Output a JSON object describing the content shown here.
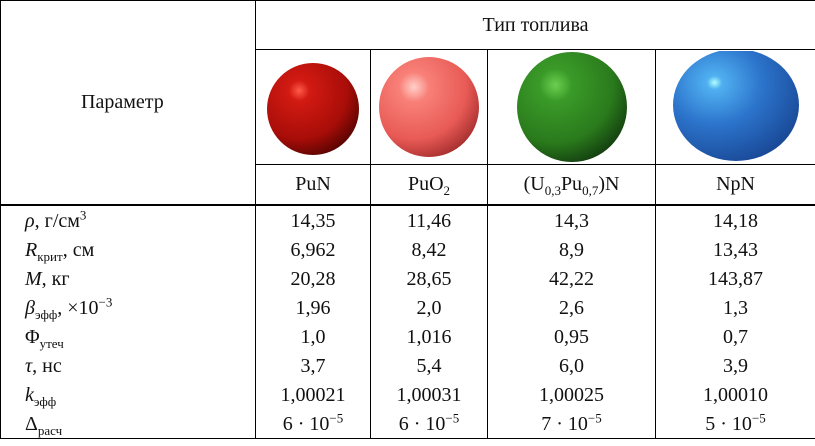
{
  "table": {
    "header": {
      "parameter": "Параметр",
      "fuel_type": "Тип топлива",
      "fuels": [
        [
          {
            "text": "PuN"
          }
        ],
        [
          {
            "text": "PuO"
          },
          {
            "sub": "2"
          }
        ],
        [
          {
            "text": "(U"
          },
          {
            "sub": "0,3"
          },
          {
            "text": "Pu"
          },
          {
            "sub": "0,7"
          },
          {
            "text": ")N"
          }
        ],
        [
          {
            "text": "NpN"
          }
        ]
      ]
    },
    "rows": [
      {
        "label": [
          {
            "math": "ρ"
          },
          {
            "text": ", г/см"
          },
          {
            "sup": "3"
          }
        ],
        "cells": [
          "14,35",
          "11,46",
          "14,3",
          "14,18"
        ]
      },
      {
        "label": [
          {
            "math": "R"
          },
          {
            "sub": "крит"
          },
          {
            "text": ", см"
          }
        ],
        "cells": [
          "6,962",
          "8,42",
          "8,9",
          "13,43"
        ]
      },
      {
        "label": [
          {
            "math": "M"
          },
          {
            "text": ", кг"
          }
        ],
        "cells": [
          "20,28",
          "28,65",
          "42,22",
          "143,87"
        ]
      },
      {
        "label": [
          {
            "math": "β"
          },
          {
            "sub": "эфф"
          },
          {
            "text": ", ×10"
          },
          {
            "sup": "−3"
          }
        ],
        "cells": [
          "1,96",
          "2,0",
          "2,6",
          "1,3"
        ]
      },
      {
        "label": [
          {
            "text": "Φ"
          },
          {
            "sub": "утеч"
          }
        ],
        "cells": [
          "1,0",
          "1,016",
          "0,95",
          "0,7"
        ]
      },
      {
        "label": [
          {
            "math": "τ"
          },
          {
            "text": ", нс"
          }
        ],
        "cells": [
          "3,7",
          "5,4",
          "6,0",
          "3,9"
        ]
      },
      {
        "label": [
          {
            "math": "k"
          },
          {
            "sub": "эфф"
          }
        ],
        "cells": [
          "1,00021",
          "1,00031",
          "1,00025",
          "1,00010"
        ]
      },
      {
        "label": [
          {
            "text": "Δ"
          },
          {
            "sub": "расч"
          }
        ],
        "cells": [
          [
            {
              "text": "6 · 10"
            },
            {
              "sup": "−5"
            }
          ],
          [
            {
              "text": "6 · 10"
            },
            {
              "sup": "−5"
            }
          ],
          [
            {
              "text": "7 · 10"
            },
            {
              "sup": "−5"
            }
          ],
          [
            {
              "text": "5 · 10"
            },
            {
              "sup": "−5"
            }
          ]
        ]
      }
    ]
  }
}
